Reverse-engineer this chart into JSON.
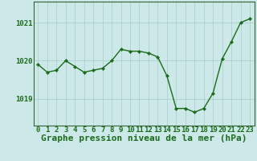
{
  "x": [
    0,
    1,
    2,
    3,
    4,
    5,
    6,
    7,
    8,
    9,
    10,
    11,
    12,
    13,
    14,
    15,
    16,
    17,
    18,
    19,
    20,
    21,
    22,
    23
  ],
  "y": [
    1019.9,
    1019.7,
    1019.75,
    1020.0,
    1019.85,
    1019.7,
    1019.75,
    1019.8,
    1020.0,
    1020.3,
    1020.25,
    1020.25,
    1020.2,
    1020.1,
    1019.6,
    1018.75,
    1018.75,
    1018.65,
    1018.75,
    1019.15,
    1020.05,
    1020.5,
    1021.0,
    1021.1
  ],
  "line_color": "#1a6b1a",
  "marker_color": "#1a6b1a",
  "bg_color": "#cce8e8",
  "grid_color": "#aacccc",
  "border_color": "#336633",
  "xlabel": "Graphe pression niveau de la mer (hPa)",
  "xlabel_color": "#1a6b1a",
  "ylabel_ticks": [
    1019,
    1020,
    1021
  ],
  "ylim": [
    1018.3,
    1021.55
  ],
  "xlim": [
    -0.5,
    23.5
  ],
  "tick_fontsize": 6.5,
  "xlabel_fontsize": 8.0
}
